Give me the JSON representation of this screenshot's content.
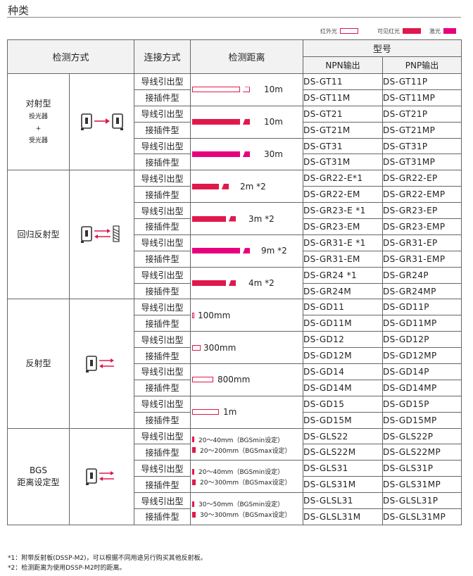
{
  "title": "种类",
  "legend": [
    {
      "label": "红外光",
      "color": "#ffffff",
      "border": "#e0184b"
    },
    {
      "label": "可见红光",
      "color": "#e0184b",
      "border": "#e0184b"
    },
    {
      "label": "激光",
      "color": "#e6007e",
      "border": "#e6007e"
    }
  ],
  "headers": {
    "method": "检测方式",
    "connection": "连接方式",
    "distance": "检测距离",
    "model": "型号",
    "npn": "NPN输出",
    "pnp": "PNP输出"
  },
  "groups": {
    "thru": {
      "name": "对射型",
      "sub1": "投光器",
      "plus": "+",
      "sub2": "受光器"
    },
    "retro": {
      "name": "回归反射型"
    },
    "diffuse": {
      "name": "反射型"
    },
    "bgs": {
      "name1": "BGS",
      "name2": "距离设定型"
    }
  },
  "connection": {
    "lead": "导线引出型",
    "plug": "接插件型"
  },
  "distances": [
    "10m",
    "10m",
    "30m",
    "2m *2",
    "3m *2",
    "9m  *2",
    "4m *2",
    "100mm",
    "300mm",
    "800mm",
    "1m"
  ],
  "bgs_ranges": [
    {
      "min": "20～40mm（BGSmin设定）",
      "max": "20～200mm（BGSmax设定）"
    },
    {
      "min": "20～40mm（BGSmin设定）",
      "max": "20～300mm（BGSmax设定）"
    },
    {
      "min": "30～50mm（BGSmin设定）",
      "max": "30～300mm（BGSmax设定）"
    }
  ],
  "models": [
    [
      "DS-GT11",
      "DS-GT11P"
    ],
    [
      "DS-GT11M",
      "DS-GT11MP"
    ],
    [
      "DS-GT21",
      "DS-GT21P"
    ],
    [
      "DS-GT21M",
      "DS-GT21MP"
    ],
    [
      "DS-GT31",
      "DS-GT31P"
    ],
    [
      "DS-GT31M",
      "DS-GT31MP"
    ],
    [
      "DS-GR22-E*1",
      "DS-GR22-EP"
    ],
    [
      "DS-GR22-EM",
      "DS-GR22-EMP"
    ],
    [
      "DS-GR23-E *1",
      "DS-GR23-EP"
    ],
    [
      "DS-GR23-EM",
      "DS-GR23-EMP"
    ],
    [
      "DS-GR31-E *1",
      "DS-GR31-EP"
    ],
    [
      "DS-GR31-EM",
      "DS-GR31-EMP"
    ],
    [
      "DS-GR24 *1",
      "DS-GR24P"
    ],
    [
      "DS-GR24M",
      "DS-GR24MP"
    ],
    [
      "DS-GD11",
      "DS-GD11P"
    ],
    [
      "DS-GD11M",
      "DS-GD11MP"
    ],
    [
      "DS-GD12",
      "DS-GD12P"
    ],
    [
      "DS-GD12M",
      "DS-GD12MP"
    ],
    [
      "DS-GD14",
      "DS-GD14P"
    ],
    [
      "DS-GD14M",
      "DS-GD14MP"
    ],
    [
      "DS-GD15",
      "DS-GD15P"
    ],
    [
      "DS-GD15M",
      "DS-GD15MP"
    ],
    [
      "DS-GLS22",
      "DS-GLS22P"
    ],
    [
      "DS-GLS22M",
      "DS-GLS22MP"
    ],
    [
      "DS-GLS31",
      "DS-GLS31P"
    ],
    [
      "DS-GLS31M",
      "DS-GLS31MP"
    ],
    [
      "DS-GLSL31",
      "DS-GLSL31P"
    ],
    [
      "DS-GLSL31M",
      "DS-GLSL31MP"
    ]
  ],
  "notes": [
    "*1：附带反射板(DSSP-M2)，可以根据不同用途另行购买其他反射板。",
    "*2：检测距离为使用DSSP-M2时的距离。"
  ]
}
